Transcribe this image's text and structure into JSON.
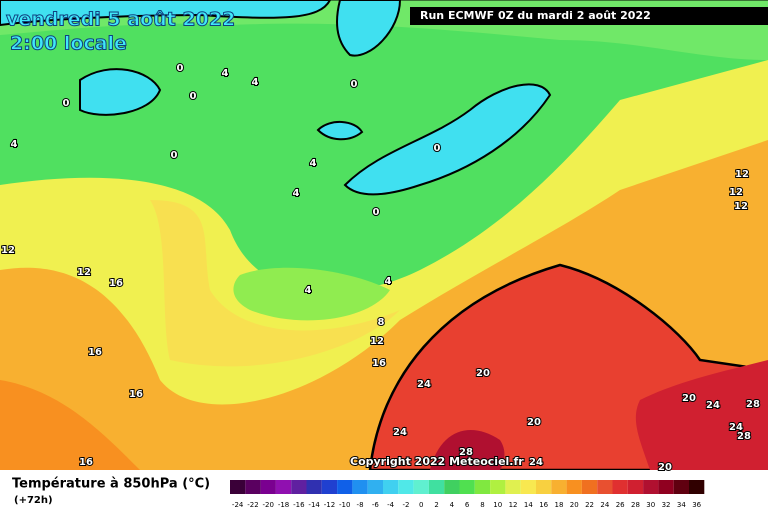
{
  "header": {
    "date": "vendredi 5 août 2022",
    "time": "2:00 locale",
    "run": "Run ECMWF 0Z du mardi 2 août 2022"
  },
  "copyright": "Copyright 2022 Meteociel.fr",
  "footer": {
    "title": "Température à 850hPa (°C)",
    "subtitle": "(+72h)"
  },
  "legend": {
    "labels": [
      -24,
      -22,
      -20,
      -18,
      -16,
      -14,
      -12,
      -10,
      -8,
      -6,
      -4,
      -2,
      0,
      2,
      4,
      6,
      8,
      10,
      12,
      14,
      16,
      18,
      20,
      22,
      24,
      26,
      28,
      30,
      32,
      34,
      36
    ],
    "colors": [
      "#3a0038",
      "#5a0060",
      "#7a0090",
      "#9010b0",
      "#6020a0",
      "#3030b0",
      "#2040d0",
      "#1060e8",
      "#2090f0",
      "#30b0f0",
      "#40d0f0",
      "#50e8e8",
      "#60f0d0",
      "#40e0a0",
      "#40d060",
      "#50e050",
      "#80e840",
      "#b0f040",
      "#e0f050",
      "#f8e850",
      "#f8d040",
      "#f8b030",
      "#f89020",
      "#f07020",
      "#e85030",
      "#e03030",
      "#d02030",
      "#b01030",
      "#900020",
      "#600010",
      "#300000"
    ]
  },
  "contour_labels": [
    0,
    4,
    4,
    0,
    0,
    4,
    0,
    4,
    0,
    0,
    4,
    0,
    12,
    12,
    16,
    4,
    4,
    8,
    12,
    16,
    16,
    16,
    24,
    20,
    24,
    20,
    28,
    24,
    20,
    24,
    28,
    24,
    28,
    12,
    12,
    12,
    20,
    16
  ]
}
